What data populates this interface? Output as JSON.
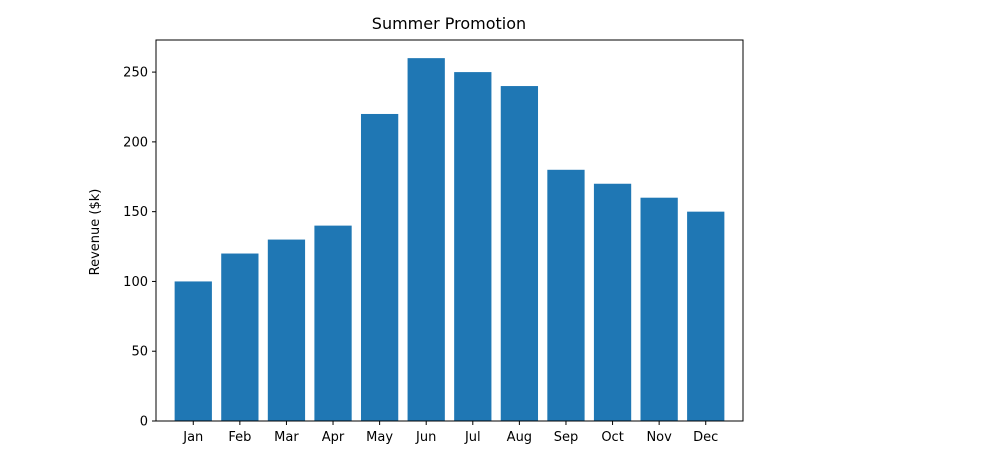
{
  "chart_data": {
    "type": "bar",
    "title": "Summer Promotion",
    "xlabel": "",
    "ylabel": "Revenue ($k)",
    "categories": [
      "Jan",
      "Feb",
      "Mar",
      "Apr",
      "May",
      "Jun",
      "Jul",
      "Aug",
      "Sep",
      "Oct",
      "Nov",
      "Dec"
    ],
    "values": [
      100,
      120,
      130,
      140,
      220,
      260,
      250,
      240,
      180,
      170,
      160,
      150
    ],
    "ylim": [
      0,
      273
    ],
    "yticks": [
      0,
      50,
      100,
      150,
      200,
      250
    ],
    "grid": false,
    "bar_color": "#1f77b4"
  }
}
